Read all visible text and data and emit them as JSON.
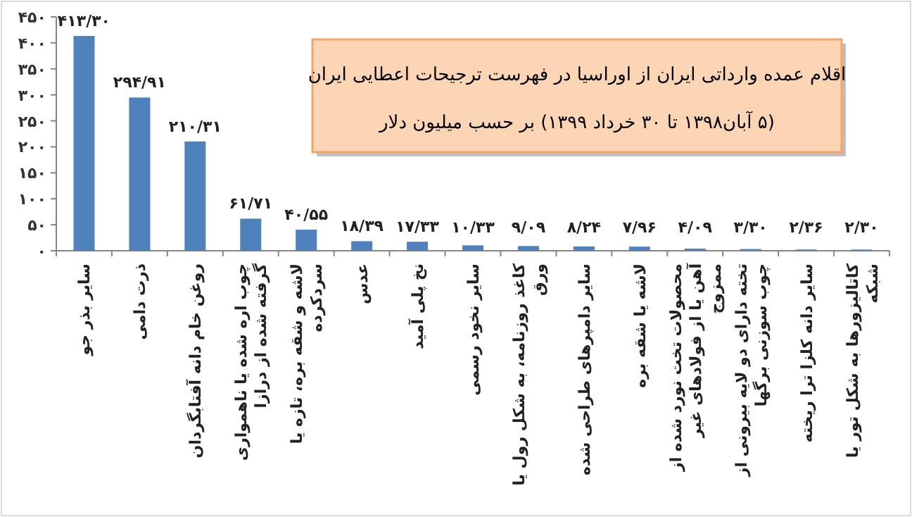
{
  "chart_data": {
    "type": "bar",
    "title": "اقلام عمده وارداتی ایران از اوراسیا در فهرست ترجیحات اعطایی ایران",
    "subtitle": "(۵ آبان۱۳۹۸ تا ۳۰ خرداد ۱۳۹۹) بر حسب میلیون دلار",
    "categories": [
      "سایر بذر جو",
      "ذرت دامی",
      "روغن خام دانه آفتابگردان",
      "چوب اره شده یا ناهمواری گرفته شده از درازا",
      "لاشه و شقه بره، تازه یا سردکرده",
      "عدس",
      "نخ پلی آمید",
      "سایر نخود رسمی",
      "کاغذ روزنامه، به شکل رول یا ورق",
      "سایر دامپرهای طراحی شده",
      "لاشه یا شقه بره",
      "محصولات تخت نورد شده از آهن یا از فولادهای غیر ممزوج",
      "تخته دارای دو لایه بیرونی از چوب سوزنی برگها",
      "سایر دانه کلزا ترا ریخته",
      "کاتالیزورها به شکل تور یا شبکه"
    ],
    "values": [
      413.3,
      294.91,
      210.31,
      61.71,
      40.55,
      18.39,
      17.33,
      10.33,
      9.09,
      8.24,
      7.96,
      4.09,
      3.3,
      2.36,
      2.3
    ],
    "value_labels": [
      "۴۱۳/۳۰",
      "۲۹۴/۹۱",
      "۲۱۰/۳۱",
      "۶۱/۷۱",
      "۴۰/۵۵",
      "۱۸/۳۹",
      "۱۷/۳۳",
      "۱۰/۳۳",
      "۹/۰۹",
      "۸/۲۴",
      "۷/۹۶",
      "۴/۰۹",
      "۳/۳۰",
      "۲/۳۶",
      "۲/۳۰"
    ],
    "color": "#4f81bd",
    "ylim": [
      0,
      450
    ],
    "yticks": [
      {
        "value": 0,
        "label": "۰"
      },
      {
        "value": 50,
        "label": "۵۰"
      },
      {
        "value": 100,
        "label": "۱۰۰"
      },
      {
        "value": 150,
        "label": "۱۵۰"
      },
      {
        "value": 200,
        "label": "۲۰۰"
      },
      {
        "value": 250,
        "label": "۲۵۰"
      },
      {
        "value": 300,
        "label": "۳۰۰"
      },
      {
        "value": 350,
        "label": "۳۵۰"
      },
      {
        "value": 400,
        "label": "۴۰۰"
      },
      {
        "value": 450,
        "label": "۴۵۰"
      }
    ]
  }
}
